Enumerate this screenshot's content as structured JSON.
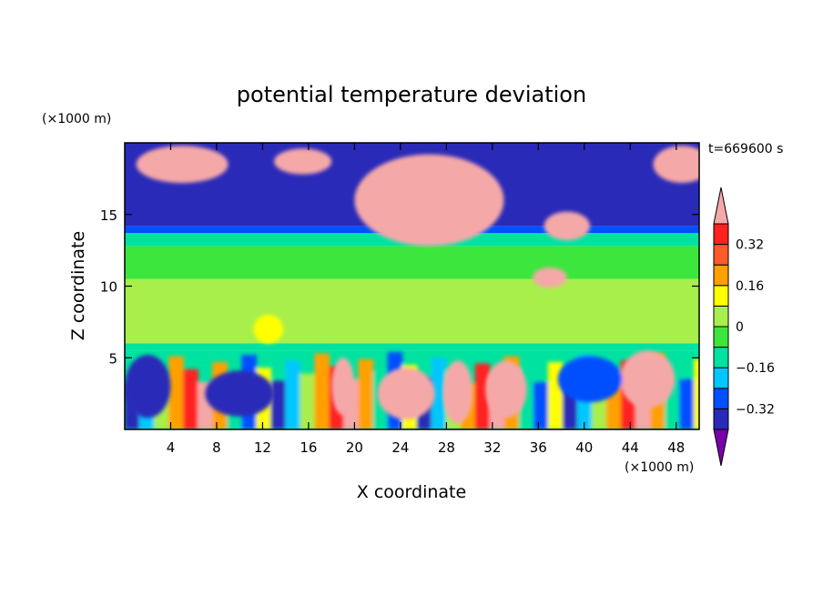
{
  "chart_data": {
    "type": "heatmap",
    "title": "potential temperature deviation",
    "xlabel": "X coordinate",
    "ylabel": "Z coordinate",
    "x_unit_label": "(×1000 m)",
    "y_unit_label": "(×1000 m)",
    "time_label": "t=669600 s",
    "xlim": [
      0,
      50
    ],
    "ylim": [
      0,
      20
    ],
    "x_ticks": [
      4,
      8,
      12,
      16,
      20,
      24,
      28,
      32,
      36,
      40,
      44,
      48
    ],
    "y_ticks": [
      5,
      10,
      15
    ],
    "grid": false,
    "colorbar": {
      "position": "right",
      "levels": [
        -0.4,
        -0.32,
        -0.24,
        -0.16,
        -0.08,
        0,
        0.08,
        0.16,
        0.24,
        0.32,
        0.4
      ],
      "tick_labels": [
        "-0.32",
        "-0.16",
        "0",
        "0.16",
        "0.32"
      ],
      "tick_values": [
        -0.32,
        -0.16,
        0,
        0.16,
        0.32
      ],
      "colors": [
        "#7a00a8",
        "#2a2ab8",
        "#0050ff",
        "#00c8ff",
        "#00e3a0",
        "#3ce63c",
        "#a8ef4c",
        "#ffff00",
        "#ffa000",
        "#ff5a2a",
        "#ff2020",
        "#f5a8a8"
      ]
    },
    "bands": [
      {
        "z": [
          0.0,
          5.5
        ],
        "description": "turbulent boundary layer, mixed values"
      },
      {
        "z": [
          5.5,
          6.0
        ],
        "value": -0.12
      },
      {
        "z": [
          6.0,
          10.5
        ],
        "value": 0.02
      },
      {
        "z": [
          10.5,
          12.8
        ],
        "value": -0.02
      },
      {
        "z": [
          12.8,
          13.7
        ],
        "value": -0.14
      },
      {
        "z": [
          13.7,
          14.2
        ],
        "value": -0.3
      },
      {
        "z": [
          14.2,
          20.0
        ],
        "value": -0.4
      }
    ],
    "blobs": [
      {
        "x": 26.5,
        "z": 16.0,
        "rx": 6.5,
        "rz": 3.2,
        "value": 0.45
      },
      {
        "x": 38.5,
        "z": 14.2,
        "rx": 2.0,
        "rz": 1.0,
        "value": 0.45
      },
      {
        "x": 5.0,
        "z": 18.5,
        "rx": 4.0,
        "rz": 1.3,
        "value": 0.45
      },
      {
        "x": 15.5,
        "z": 18.7,
        "rx": 2.5,
        "rz": 0.9,
        "value": 0.45
      },
      {
        "x": 48.5,
        "z": 18.5,
        "rx": 2.5,
        "rz": 1.3,
        "value": 0.45
      },
      {
        "x": 37.0,
        "z": 10.6,
        "rx": 1.5,
        "rz": 0.7,
        "value": 0.45
      },
      {
        "x": 12.5,
        "z": 7.0,
        "rx": 1.3,
        "rz": 1.0,
        "value": 0.14
      },
      {
        "x": 19.0,
        "z": 3.0,
        "rx": 1.0,
        "rz": 2.0,
        "value": 0.45
      },
      {
        "x": 24.5,
        "z": 2.5,
        "rx": 2.5,
        "rz": 1.8,
        "value": 0.45
      },
      {
        "x": 29.0,
        "z": 2.6,
        "rx": 1.3,
        "rz": 2.2,
        "value": 0.45
      },
      {
        "x": 33.2,
        "z": 2.8,
        "rx": 1.8,
        "rz": 2.0,
        "value": 0.45
      },
      {
        "x": 45.5,
        "z": 3.5,
        "rx": 2.4,
        "rz": 2.0,
        "value": 0.45
      },
      {
        "x": 10.0,
        "z": 2.5,
        "rx": 3.0,
        "rz": 1.6,
        "value": -0.4
      },
      {
        "x": 2.0,
        "z": 3.0,
        "rx": 2.0,
        "rz": 2.2,
        "value": -0.4
      },
      {
        "x": 40.5,
        "z": 3.5,
        "rx": 2.8,
        "rz": 1.6,
        "value": -0.3
      }
    ]
  }
}
